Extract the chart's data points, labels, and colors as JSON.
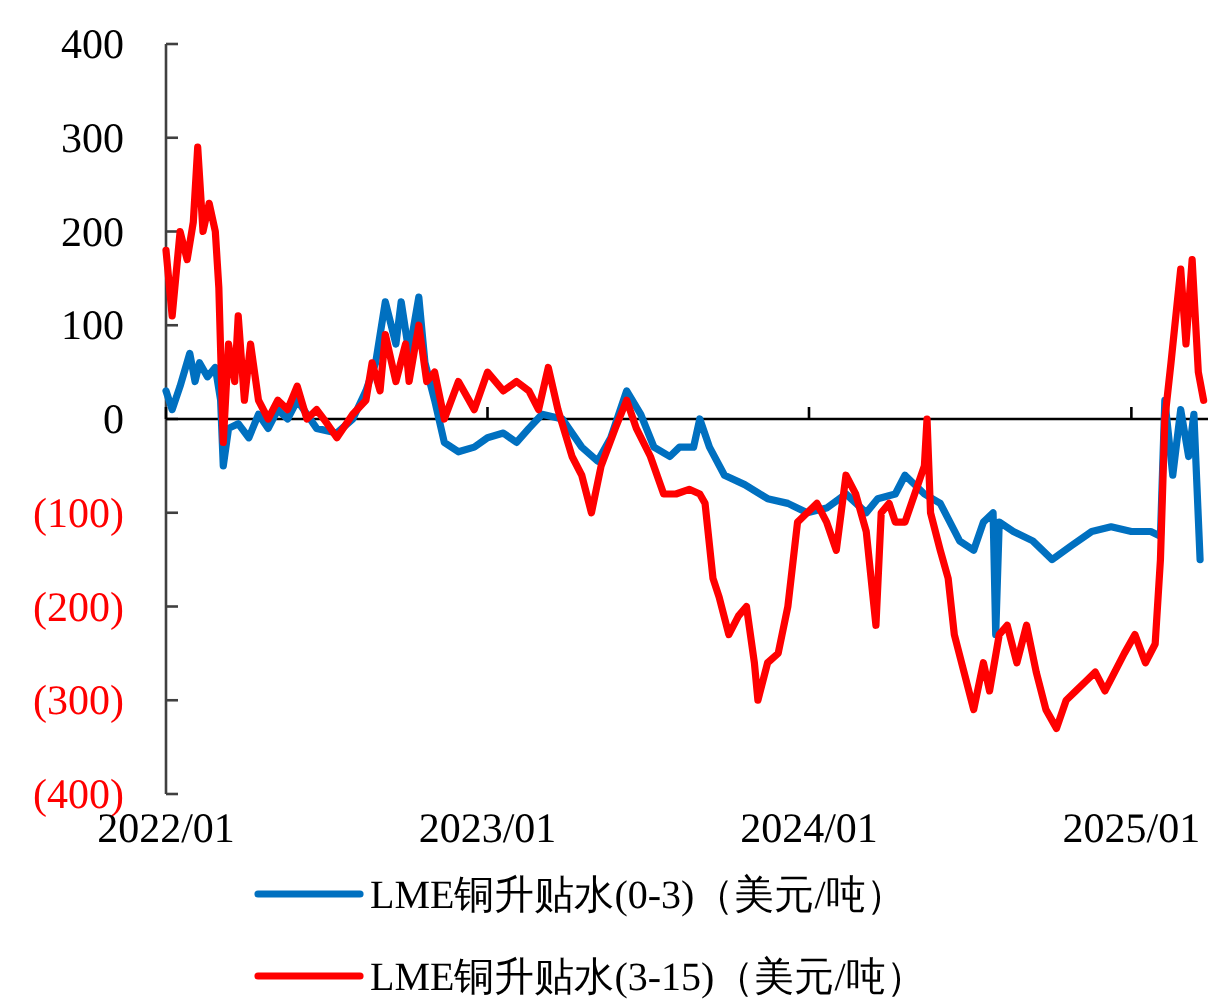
{
  "chart_data": {
    "type": "line",
    "xlim": [
      "2022-01-01",
      "2025-03-29"
    ],
    "ylim": [
      -400,
      400
    ],
    "yticks": [
      {
        "value": -400,
        "label": "(400)"
      },
      {
        "value": -300,
        "label": "(300)"
      },
      {
        "value": -200,
        "label": "(200)"
      },
      {
        "value": -100,
        "label": "(100)"
      },
      0,
      100,
      200,
      300,
      400
    ],
    "xticks": [
      {
        "value": "2022-01-01",
        "label": "2022/01"
      },
      {
        "value": "2023-01-01",
        "label": "2023/01"
      },
      {
        "value": "2024-01-01",
        "label": "2024/01"
      },
      {
        "value": "2025-01-01",
        "label": "2025/01"
      }
    ],
    "grid": false,
    "legend": "bottom",
    "ref_lines": [
      {
        "axis": "y",
        "value": 0,
        "color": "#000000"
      }
    ],
    "line_style": "solid",
    "marker": "none",
    "series": [
      {
        "name": "LME铜升贴水(0-3)（美元/吨）",
        "color": "#0070c0",
        "x": [
          "2022-01-01",
          "2022-01-08",
          "2022-01-17",
          "2022-01-28",
          "2022-02-03",
          "2022-02-08",
          "2022-02-17",
          "2022-02-26",
          "2022-03-04",
          "2022-03-07",
          "2022-03-13",
          "2022-03-24",
          "2022-04-05",
          "2022-04-16",
          "2022-04-27",
          "2022-05-08",
          "2022-05-19",
          "2022-05-30",
          "2022-06-21",
          "2022-07-14",
          "2022-08-01",
          "2022-08-16",
          "2022-08-27",
          "2022-09-07",
          "2022-09-19",
          "2022-09-25",
          "2022-10-04",
          "2022-10-15",
          "2022-10-22",
          "2022-11-02",
          "2022-11-13",
          "2022-11-29",
          "2022-12-17",
          "2023-01-01",
          "2023-01-19",
          "2023-02-03",
          "2023-02-17",
          "2023-03-04",
          "2023-03-27",
          "2023-04-18",
          "2023-05-06",
          "2023-05-21",
          "2023-06-08",
          "2023-06-24",
          "2023-07-09",
          "2023-07-27",
          "2023-08-07",
          "2023-08-23",
          "2023-08-30",
          "2023-09-10",
          "2023-09-27",
          "2023-10-20",
          "2023-11-15",
          "2023-12-08",
          "2023-12-30",
          "2024-01-21",
          "2024-02-12",
          "2024-03-06",
          "2024-03-19",
          "2024-04-08",
          "2024-04-19",
          "2024-05-11",
          "2024-05-29",
          "2024-06-20",
          "2024-07-06",
          "2024-07-17",
          "2024-07-28",
          "2024-07-31",
          "2024-08-04",
          "2024-08-20",
          "2024-09-11",
          "2024-10-03",
          "2024-10-25",
          "2024-11-17",
          "2024-12-09",
          "2025-01-01",
          "2025-01-23",
          "2025-02-03",
          "2025-02-08",
          "2025-02-17",
          "2025-02-26",
          "2025-03-07",
          "2025-03-13",
          "2025-03-20"
        ],
        "values": [
          30,
          10,
          35,
          70,
          40,
          60,
          45,
          55,
          20,
          -50,
          -10,
          -5,
          -20,
          5,
          -10,
          10,
          0,
          20,
          -10,
          -15,
          0,
          30,
          60,
          125,
          80,
          125,
          70,
          130,
          60,
          20,
          -25,
          -35,
          -30,
          -20,
          -15,
          -25,
          -10,
          5,
          0,
          -30,
          -45,
          -20,
          30,
          5,
          -30,
          -40,
          -30,
          -30,
          0,
          -30,
          -60,
          -70,
          -85,
          -90,
          -100,
          -95,
          -80,
          -100,
          -85,
          -80,
          -60,
          -80,
          -90,
          -130,
          -140,
          -110,
          -100,
          -230,
          -110,
          -120,
          -130,
          -150,
          -135,
          -120,
          -115,
          -120,
          -120,
          -125,
          20,
          -60,
          10,
          -40,
          5,
          -150
        ]
      },
      {
        "name": "LME铜升贴水(3-15)（美元/吨）",
        "color": "#ff0000",
        "x": [
          "2022-01-01",
          "2022-01-08",
          "2022-01-17",
          "2022-01-25",
          "2022-02-01",
          "2022-02-06",
          "2022-02-12",
          "2022-02-19",
          "2022-02-26",
          "2022-03-02",
          "2022-03-07",
          "2022-03-13",
          "2022-03-20",
          "2022-03-24",
          "2022-03-31",
          "2022-04-07",
          "2022-04-16",
          "2022-04-27",
          "2022-05-08",
          "2022-05-19",
          "2022-05-30",
          "2022-06-10",
          "2022-06-21",
          "2022-07-03",
          "2022-07-14",
          "2022-08-01",
          "2022-08-16",
          "2022-08-23",
          "2022-09-01",
          "2022-09-07",
          "2022-09-19",
          "2022-09-30",
          "2022-10-04",
          "2022-10-15",
          "2022-10-24",
          "2022-11-02",
          "2022-11-13",
          "2022-11-29",
          "2022-12-17",
          "2023-01-01",
          "2023-01-19",
          "2023-02-03",
          "2023-02-17",
          "2023-02-28",
          "2023-03-11",
          "2023-03-22",
          "2023-04-07",
          "2023-04-18",
          "2023-04-29",
          "2023-05-10",
          "2023-05-26",
          "2023-06-08",
          "2023-06-19",
          "2023-07-05",
          "2023-07-20",
          "2023-08-03",
          "2023-08-18",
          "2023-08-30",
          "2023-09-05",
          "2023-09-14",
          "2023-09-21",
          "2023-10-02",
          "2023-10-13",
          "2023-10-22",
          "2023-10-31",
          "2023-11-04",
          "2023-11-15",
          "2023-11-27",
          "2023-12-08",
          "2023-12-19",
          "2023-12-30",
          "2024-01-10",
          "2024-01-21",
          "2024-02-01",
          "2024-02-12",
          "2024-02-23",
          "2024-03-06",
          "2024-03-17",
          "2024-03-23",
          "2024-04-01",
          "2024-04-08",
          "2024-04-19",
          "2024-05-11",
          "2024-05-14",
          "2024-05-18",
          "2024-05-29",
          "2024-06-07",
          "2024-06-14",
          "2024-06-25",
          "2024-07-06",
          "2024-07-17",
          "2024-07-24",
          "2024-08-04",
          "2024-08-13",
          "2024-08-24",
          "2024-09-04",
          "2024-09-15",
          "2024-09-26",
          "2024-10-08",
          "2024-10-19",
          "2024-10-30",
          "2024-11-10",
          "2024-11-21",
          "2024-12-02",
          "2024-12-13",
          "2024-12-24",
          "2025-01-05",
          "2025-01-17",
          "2025-01-28",
          "2025-02-03",
          "2025-02-08",
          "2025-02-15",
          "2025-02-26",
          "2025-03-04",
          "2025-03-11",
          "2025-03-18",
          "2025-03-24"
        ],
        "values": [
          180,
          110,
          200,
          170,
          210,
          290,
          200,
          230,
          200,
          140,
          -25,
          80,
          40,
          110,
          20,
          80,
          20,
          0,
          20,
          10,
          35,
          0,
          10,
          -5,
          -20,
          5,
          20,
          60,
          30,
          90,
          40,
          80,
          40,
          100,
          40,
          50,
          0,
          40,
          10,
          50,
          30,
          40,
          30,
          10,
          55,
          10,
          -40,
          -60,
          -100,
          -50,
          -10,
          20,
          -10,
          -40,
          -80,
          -80,
          -75,
          -80,
          -90,
          -170,
          -190,
          -230,
          -210,
          -200,
          -260,
          -300,
          -260,
          -250,
          -200,
          -110,
          -100,
          -90,
          -110,
          -140,
          -60,
          -80,
          -120,
          -220,
          -100,
          -90,
          -110,
          -110,
          -50,
          0,
          -100,
          -140,
          -170,
          -230,
          -270,
          -310,
          -260,
          -290,
          -230,
          -220,
          -260,
          -220,
          -270,
          -310,
          -330,
          -300,
          -290,
          -280,
          -270,
          -290,
          -270,
          -250,
          -230,
          -260,
          -240,
          -150,
          0,
          60,
          160,
          80,
          170,
          50,
          20
        ]
      }
    ]
  }
}
